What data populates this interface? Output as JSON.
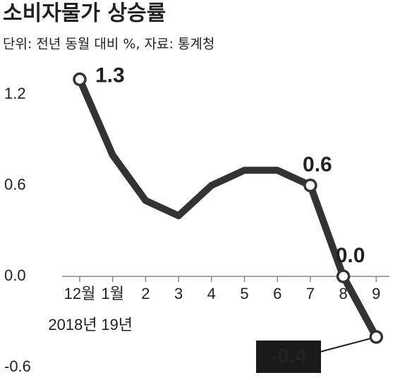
{
  "chart_data": {
    "type": "line",
    "title": "소비자물가 상승률",
    "subtitle": "단위: 전년 동월 대비 %, 자료: 통계청",
    "categories": [
      "12월",
      "1월",
      "2",
      "3",
      "4",
      "5",
      "6",
      "7",
      "8",
      "9"
    ],
    "year_labels": [
      "2018년",
      "19년",
      null,
      null,
      null,
      null,
      null,
      null,
      null,
      null
    ],
    "values": [
      1.3,
      0.8,
      0.5,
      0.4,
      0.6,
      0.7,
      0.7,
      0.6,
      0.0,
      -0.4
    ],
    "value_labels": [
      "1.3",
      null,
      null,
      null,
      null,
      null,
      null,
      "0.6",
      "0.0",
      "-0.4"
    ],
    "color": "#333333",
    "ylim": [
      -0.6,
      1.4
    ],
    "yticks": [
      -0.6,
      {
        "value": 0,
        "label": "0.0"
      },
      0.6,
      1.2
    ],
    "grid": false
  }
}
